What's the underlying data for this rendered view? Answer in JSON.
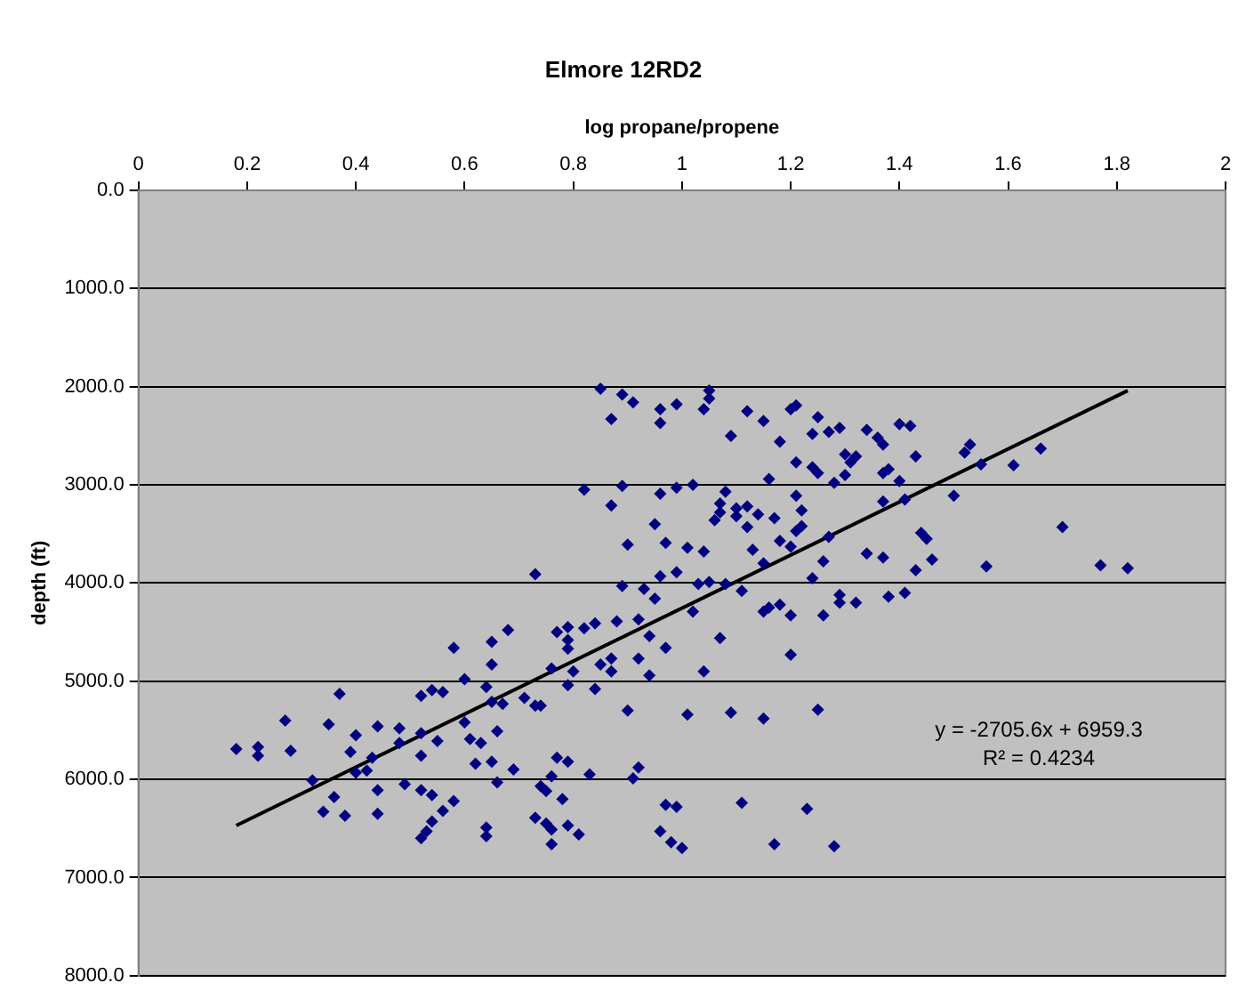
{
  "chart_data": {
    "type": "scatter",
    "title": "Elmore 12RD2",
    "xlabel": "log propane/propene",
    "ylabel": "depth (ft)",
    "xlim": [
      0,
      2
    ],
    "xticks": [
      0,
      0.2,
      0.4,
      0.6,
      0.8,
      1,
      1.2,
      1.4,
      1.6,
      1.8,
      2
    ],
    "ylim": [
      8000,
      0
    ],
    "yticks": [
      {
        "value": 0,
        "label": "0.0"
      },
      {
        "value": 1000,
        "label": "1000.0"
      },
      {
        "value": 2000,
        "label": "2000.0"
      },
      {
        "value": 3000,
        "label": "3000.0"
      },
      {
        "value": 4000,
        "label": "4000.0"
      },
      {
        "value": 5000,
        "label": "5000.0"
      },
      {
        "value": 6000,
        "label": "6000.0"
      },
      {
        "value": 7000,
        "label": "7000.0"
      },
      {
        "value": 8000,
        "label": "8000.0"
      }
    ],
    "grid": "y",
    "legend": false,
    "marker": "diamond",
    "annotations": [
      "y = -2705.6x + 6959.3",
      "R² = 0.4234"
    ],
    "series": [
      {
        "type": "scatter",
        "color": "#000080",
        "x": [
          0.85,
          0.89,
          0.91,
          0.87,
          0.82,
          0.89,
          0.87,
          0.9,
          0.73,
          0.89,
          0.58,
          0.65,
          0.68,
          0.65,
          0.77,
          0.79,
          0.79,
          0.79,
          0.82,
          0.84,
          0.88,
          0.87,
          0.85,
          0.87,
          0.8,
          0.76,
          0.6,
          1.05,
          1.05,
          1.04,
          0.99,
          0.96,
          0.96,
          1.12,
          1.15,
          1.09,
          1.21,
          1.2,
          1.25,
          1.18,
          1.24,
          1.27,
          1.29,
          1.34,
          1.36,
          1.37,
          1.4,
          1.42,
          1.3,
          1.32,
          1.31,
          1.21,
          1.24,
          1.25,
          1.3,
          1.28,
          1.16,
          1.37,
          1.38,
          1.4,
          1.43,
          1.53,
          1.52,
          1.55,
          1.61,
          1.66,
          1.02,
          0.99,
          0.96,
          1.08,
          1.07,
          1.1,
          1.12,
          1.1,
          1.06,
          1.07,
          1.14,
          1.17,
          1.21,
          1.22,
          1.22,
          1.21,
          1.12,
          0.95,
          0.97,
          1.01,
          1.04,
          1.13,
          1.18,
          1.2,
          1.27,
          1.37,
          1.41,
          1.5,
          1.44,
          1.45,
          1.34,
          1.37,
          1.43,
          1.46,
          1.26,
          1.15,
          1.56,
          1.7,
          1.77,
          1.82,
          0.96,
          0.99,
          0.93,
          0.95,
          1.03,
          1.05,
          1.08,
          1.11,
          1.24,
          1.02,
          1.15,
          1.16,
          1.18,
          1.2,
          1.26,
          1.29,
          1.29,
          1.32,
          1.38,
          1.41,
          1.07,
          1.2,
          0.92,
          0.94,
          0.97,
          0.92,
          1.04,
          0.94,
          0.18,
          0.22,
          0.22,
          0.27,
          0.28,
          0.35,
          0.37,
          0.32,
          0.36,
          0.34,
          0.38,
          0.39,
          0.4,
          0.44,
          0.43,
          0.4,
          0.42,
          0.44,
          0.44,
          0.48,
          0.48,
          0.52,
          0.54,
          0.56,
          0.52,
          0.52,
          0.49,
          0.52,
          0.54,
          0.58,
          0.56,
          0.54,
          0.53,
          0.52,
          0.55,
          0.6,
          0.61,
          0.63,
          0.62,
          0.64,
          0.65,
          0.67,
          0.66,
          0.65,
          0.69,
          0.66,
          0.64,
          0.64,
          0.71,
          0.73,
          0.74,
          0.73,
          0.74,
          0.75,
          0.76,
          0.77,
          0.79,
          0.78,
          0.75,
          0.76,
          0.76,
          0.79,
          0.81,
          0.83,
          0.79,
          0.84,
          0.9,
          0.91,
          1.01,
          1.09,
          1.15,
          1.25,
          0.92,
          0.97,
          0.99,
          1.11,
          1.23,
          0.96,
          0.98,
          1.0,
          1.17,
          1.28
        ],
        "values": [
          2020,
          2080,
          2160,
          2330,
          3050,
          3010,
          3210,
          3610,
          3910,
          4030,
          4660,
          4600,
          4480,
          4830,
          4500,
          4450,
          4580,
          4670,
          4460,
          4410,
          4390,
          4770,
          4830,
          4900,
          4900,
          4870,
          4980,
          2040,
          2120,
          2230,
          2180,
          2230,
          2370,
          2250,
          2350,
          2500,
          2190,
          2230,
          2310,
          2560,
          2480,
          2460,
          2420,
          2440,
          2520,
          2590,
          2380,
          2400,
          2690,
          2710,
          2770,
          2770,
          2820,
          2880,
          2900,
          2980,
          2940,
          2880,
          2840,
          2960,
          2710,
          2590,
          2670,
          2790,
          2800,
          2630,
          3000,
          3030,
          3090,
          3070,
          3190,
          3240,
          3220,
          3320,
          3360,
          3280,
          3300,
          3340,
          3110,
          3260,
          3420,
          3470,
          3430,
          3400,
          3590,
          3640,
          3680,
          3660,
          3570,
          3630,
          3530,
          3170,
          3150,
          3110,
          3490,
          3550,
          3700,
          3740,
          3870,
          3760,
          3780,
          3800,
          3830,
          3430,
          3820,
          3850,
          3930,
          3890,
          4060,
          4160,
          4010,
          3990,
          4010,
          4080,
          3950,
          4290,
          4290,
          4250,
          4220,
          4330,
          4330,
          4120,
          4200,
          4200,
          4140,
          4100,
          4560,
          4730,
          4370,
          4540,
          4660,
          4770,
          4900,
          4940,
          5690,
          5670,
          5760,
          5400,
          5710,
          5440,
          5130,
          6010,
          6180,
          6330,
          6370,
          5720,
          5550,
          5460,
          5780,
          5930,
          5910,
          6110,
          6350,
          5480,
          5630,
          5150,
          5090,
          5110,
          5530,
          5760,
          6050,
          6110,
          6160,
          6220,
          6320,
          6430,
          6530,
          6600,
          5610,
          5420,
          5590,
          5630,
          5840,
          5060,
          5210,
          5230,
          5510,
          5820,
          5900,
          6030,
          6490,
          6580,
          5170,
          5250,
          5250,
          6390,
          6070,
          6120,
          5970,
          5780,
          5820,
          6200,
          6450,
          6510,
          6660,
          6470,
          6560,
          5950,
          5040,
          5080,
          5300,
          5990,
          5340,
          5320,
          5380,
          5290,
          5880,
          6260,
          6280,
          6240,
          6300,
          6530,
          6640,
          6700,
          6660,
          6680
        ]
      },
      {
        "type": "line",
        "color": "#000000",
        "marker": "none",
        "x": [
          0.18,
          1.82
        ],
        "values": [
          6470,
          2040
        ]
      }
    ]
  }
}
